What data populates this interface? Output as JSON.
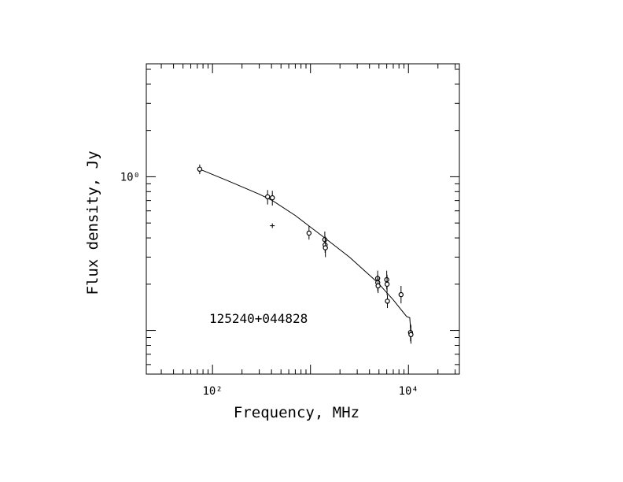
{
  "chart_data": {
    "type": "scatter",
    "source_name": "125240+044828",
    "xlabel": "Frequency, MHz",
    "ylabel": "Flux density, Jy",
    "x_scale": "log",
    "y_scale": "log",
    "xlim": [
      21.1,
      33100.0
    ],
    "ylim": [
      0.052,
      5.43
    ],
    "x_tick_labels": [
      {
        "value": 100,
        "label": "10²"
      },
      {
        "value": 10000,
        "label": "10⁴"
      }
    ],
    "y_tick_labels": [
      {
        "value": 1,
        "label": "10⁰"
      }
    ],
    "grid": false,
    "points": [
      {
        "x": 74,
        "y": 1.12,
        "err": [
          1.04,
          1.2
        ]
      },
      {
        "x": 365,
        "y": 0.74,
        "err": [
          0.66,
          0.82
        ]
      },
      {
        "x": 408,
        "y": 0.73,
        "err": [
          0.65,
          0.81
        ]
      },
      {
        "x": 966,
        "y": 0.43,
        "err": [
          0.39,
          0.48
        ]
      },
      {
        "x": 1400,
        "y": 0.39,
        "err": [
          0.34,
          0.44
        ]
      },
      {
        "x": 1410,
        "y": 0.36,
        "err": [
          0.32,
          0.41
        ]
      },
      {
        "x": 1420,
        "y": 0.345,
        "err": [
          0.3,
          0.4
        ]
      },
      {
        "x": 4850,
        "y": 0.218,
        "err": [
          0.195,
          0.245
        ]
      },
      {
        "x": 4860,
        "y": 0.205,
        "err": [
          0.18,
          0.23
        ]
      },
      {
        "x": 4900,
        "y": 0.195,
        "err": [
          0.175,
          0.22
        ]
      },
      {
        "x": 6000,
        "y": 0.214,
        "err": [
          0.185,
          0.245
        ]
      },
      {
        "x": 6050,
        "y": 0.2,
        "err": [
          0.17,
          0.23
        ]
      },
      {
        "x": 6100,
        "y": 0.155,
        "err": [
          0.14,
          0.17
        ]
      },
      {
        "x": 8400,
        "y": 0.171,
        "err": [
          0.15,
          0.195
        ]
      },
      {
        "x": 10500,
        "y": 0.097,
        "err": [
          0.085,
          0.11
        ]
      },
      {
        "x": 10600,
        "y": 0.094,
        "err": [
          0.082,
          0.108
        ]
      }
    ],
    "markers": [
      {
        "x": 408,
        "y": 0.48
      }
    ],
    "fit_curve": [
      {
        "x": 74,
        "y": 1.12
      },
      {
        "x": 150,
        "y": 0.93
      },
      {
        "x": 300,
        "y": 0.77
      },
      {
        "x": 408,
        "y": 0.7
      },
      {
        "x": 700,
        "y": 0.56
      },
      {
        "x": 1000,
        "y": 0.47
      },
      {
        "x": 1400,
        "y": 0.4
      },
      {
        "x": 2500,
        "y": 0.3
      },
      {
        "x": 4850,
        "y": 0.205
      },
      {
        "x": 7000,
        "y": 0.158
      },
      {
        "x": 9600,
        "y": 0.123
      },
      {
        "x": 10300,
        "y": 0.121
      },
      {
        "x": 10600,
        "y": 0.095
      }
    ]
  }
}
